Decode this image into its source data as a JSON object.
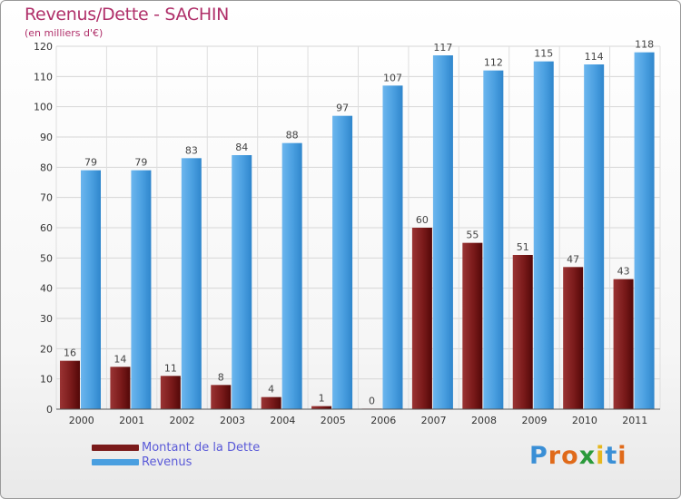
{
  "title": "Revenus/Dette - SACHIN",
  "subtitle": "(en milliers d'€)",
  "logo": {
    "text": "Proxiti",
    "letters": [
      "P",
      "r",
      "o",
      "x",
      "i",
      "t",
      "i"
    ],
    "colors": [
      "#3a8fd6",
      "#e06a1a",
      "#e06a1a",
      "#2a9a3a",
      "#e6b71e",
      "#3a8fd6",
      "#e06a1a"
    ]
  },
  "legend": [
    {
      "label": "Montant de la Dette",
      "color": "#7a1a1a"
    },
    {
      "label": "Revenus",
      "color": "#4a9fe0"
    }
  ],
  "chart_data": {
    "type": "bar",
    "categories": [
      "2000",
      "2001",
      "2002",
      "2003",
      "2004",
      "2005",
      "2006",
      "2007",
      "2008",
      "2009",
      "2010",
      "2011"
    ],
    "series": [
      {
        "name": "Montant de la Dette",
        "color": "#7a1a1a",
        "values": [
          16,
          14,
          11,
          8,
          4,
          1,
          0,
          60,
          55,
          51,
          47,
          43
        ]
      },
      {
        "name": "Revenus",
        "color": "#4a9fe0",
        "values": [
          79,
          79,
          83,
          84,
          88,
          97,
          107,
          117,
          112,
          115,
          114,
          118
        ]
      }
    ],
    "ylim": [
      0,
      120
    ],
    "yticks": [
      0,
      10,
      20,
      30,
      40,
      50,
      60,
      70,
      80,
      90,
      100,
      110,
      120
    ],
    "grid": true,
    "legend_position": "bottom-left"
  }
}
